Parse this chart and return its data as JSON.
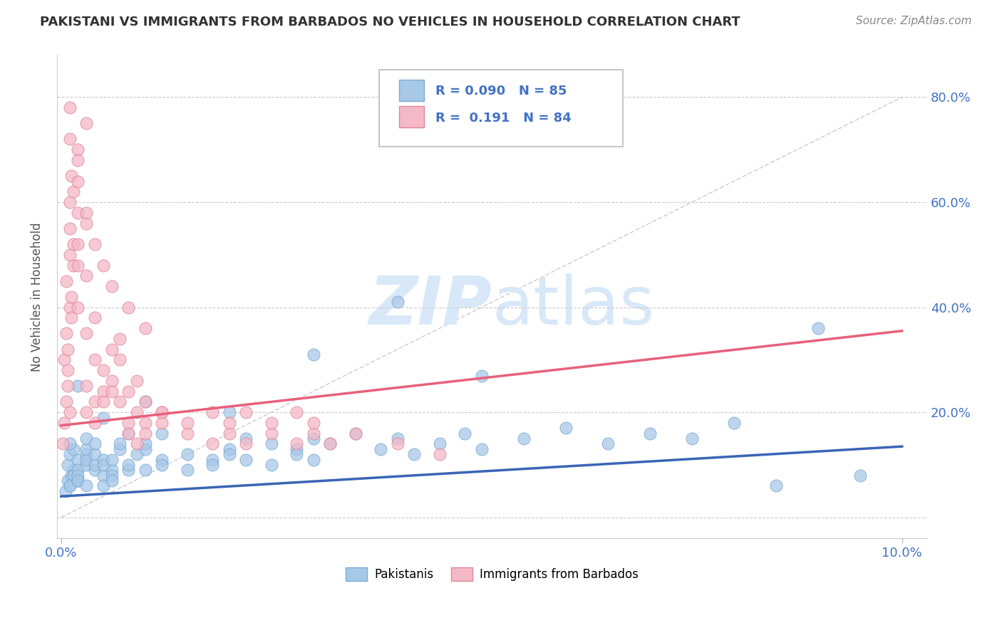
{
  "title": "PAKISTANI VS IMMIGRANTS FROM BARBADOS NO VEHICLES IN HOUSEHOLD CORRELATION CHART",
  "source": "Source: ZipAtlas.com",
  "ylabel": "No Vehicles in Household",
  "ytick_vals": [
    0.0,
    0.2,
    0.4,
    0.6,
    0.8
  ],
  "ytick_labels": [
    "",
    "20.0%",
    "40.0%",
    "60.0%",
    "80.0%"
  ],
  "xlim": [
    -0.0005,
    0.103
  ],
  "ylim": [
    -0.04,
    0.88
  ],
  "xtick_vals": [
    0.0,
    0.1
  ],
  "xtick_labels": [
    "0.0%",
    "10.0%"
  ],
  "legend_r1": "R = 0.090",
  "legend_n1": "N = 85",
  "legend_r2": "R =  0.191",
  "legend_n2": "N = 84",
  "color_blue": "#A8C8E8",
  "color_blue_edge": "#7AACD4",
  "color_pink": "#F4B8C8",
  "color_pink_edge": "#E08898",
  "color_blue_line": "#3A65B5",
  "color_pink_line": "#E8607A",
  "color_diag_line": "#C8C8C8",
  "color_text": "#333333",
  "color_axis": "#4472C4",
  "color_grid": "#CCCCCC",
  "color_watermark": "#D8E8F8",
  "blue_trend_y0": 0.04,
  "blue_trend_y1": 0.135,
  "pink_trend_y0": 0.175,
  "pink_trend_y1": 0.355,
  "pakistani_x": [
    0.0005,
    0.0008,
    0.001,
    0.0012,
    0.0015,
    0.002,
    0.0008,
    0.001,
    0.0015,
    0.002,
    0.001,
    0.0015,
    0.002,
    0.003,
    0.002,
    0.003,
    0.001,
    0.002,
    0.003,
    0.004,
    0.003,
    0.004,
    0.002,
    0.003,
    0.005,
    0.004,
    0.003,
    0.005,
    0.006,
    0.004,
    0.005,
    0.006,
    0.007,
    0.005,
    0.006,
    0.008,
    0.007,
    0.006,
    0.009,
    0.008,
    0.01,
    0.012,
    0.01,
    0.008,
    0.015,
    0.012,
    0.01,
    0.018,
    0.015,
    0.012,
    0.02,
    0.018,
    0.022,
    0.02,
    0.025,
    0.022,
    0.028,
    0.025,
    0.03,
    0.028,
    0.032,
    0.03,
    0.035,
    0.038,
    0.04,
    0.042,
    0.045,
    0.048,
    0.05,
    0.055,
    0.06,
    0.065,
    0.07,
    0.075,
    0.08,
    0.085,
    0.09,
    0.095,
    0.05,
    0.04,
    0.03,
    0.02,
    0.01,
    0.005,
    0.002
  ],
  "pakistani_y": [
    0.05,
    0.07,
    0.06,
    0.08,
    0.09,
    0.07,
    0.1,
    0.12,
    0.08,
    0.11,
    0.06,
    0.13,
    0.09,
    0.1,
    0.07,
    0.12,
    0.14,
    0.08,
    0.11,
    0.09,
    0.13,
    0.1,
    0.07,
    0.15,
    0.08,
    0.12,
    0.06,
    0.11,
    0.09,
    0.14,
    0.1,
    0.08,
    0.13,
    0.06,
    0.11,
    0.09,
    0.14,
    0.07,
    0.12,
    0.1,
    0.13,
    0.11,
    0.09,
    0.16,
    0.12,
    0.1,
    0.14,
    0.11,
    0.09,
    0.16,
    0.13,
    0.1,
    0.15,
    0.12,
    0.14,
    0.11,
    0.13,
    0.1,
    0.15,
    0.12,
    0.14,
    0.11,
    0.16,
    0.13,
    0.15,
    0.12,
    0.14,
    0.16,
    0.13,
    0.15,
    0.17,
    0.14,
    0.16,
    0.15,
    0.18,
    0.06,
    0.36,
    0.08,
    0.27,
    0.41,
    0.31,
    0.2,
    0.22,
    0.19,
    0.25
  ],
  "barbados_x": [
    0.0002,
    0.0004,
    0.0006,
    0.0008,
    0.001,
    0.0004,
    0.0006,
    0.0008,
    0.001,
    0.0006,
    0.0008,
    0.001,
    0.0012,
    0.001,
    0.0012,
    0.0015,
    0.001,
    0.0015,
    0.002,
    0.0012,
    0.0015,
    0.002,
    0.001,
    0.002,
    0.003,
    0.002,
    0.003,
    0.001,
    0.002,
    0.003,
    0.002,
    0.003,
    0.004,
    0.003,
    0.004,
    0.002,
    0.004,
    0.005,
    0.003,
    0.005,
    0.006,
    0.004,
    0.006,
    0.007,
    0.005,
    0.007,
    0.008,
    0.006,
    0.008,
    0.009,
    0.007,
    0.009,
    0.01,
    0.008,
    0.01,
    0.012,
    0.009,
    0.012,
    0.01,
    0.015,
    0.012,
    0.018,
    0.015,
    0.02,
    0.018,
    0.022,
    0.02,
    0.025,
    0.022,
    0.028,
    0.025,
    0.03,
    0.028,
    0.032,
    0.03,
    0.035,
    0.04,
    0.045,
    0.005,
    0.004,
    0.006,
    0.003,
    0.008,
    0.01
  ],
  "barbados_y": [
    0.14,
    0.18,
    0.22,
    0.25,
    0.2,
    0.3,
    0.35,
    0.28,
    0.4,
    0.45,
    0.32,
    0.5,
    0.38,
    0.55,
    0.42,
    0.48,
    0.6,
    0.52,
    0.58,
    0.65,
    0.62,
    0.7,
    0.72,
    0.68,
    0.75,
    0.64,
    0.58,
    0.78,
    0.52,
    0.46,
    0.4,
    0.35,
    0.3,
    0.25,
    0.22,
    0.48,
    0.18,
    0.28,
    0.2,
    0.24,
    0.32,
    0.38,
    0.26,
    0.34,
    0.22,
    0.3,
    0.18,
    0.24,
    0.16,
    0.2,
    0.22,
    0.14,
    0.18,
    0.24,
    0.16,
    0.2,
    0.26,
    0.18,
    0.22,
    0.16,
    0.2,
    0.14,
    0.18,
    0.16,
    0.2,
    0.14,
    0.18,
    0.16,
    0.2,
    0.14,
    0.18,
    0.16,
    0.2,
    0.14,
    0.18,
    0.16,
    0.14,
    0.12,
    0.48,
    0.52,
    0.44,
    0.56,
    0.4,
    0.36
  ]
}
